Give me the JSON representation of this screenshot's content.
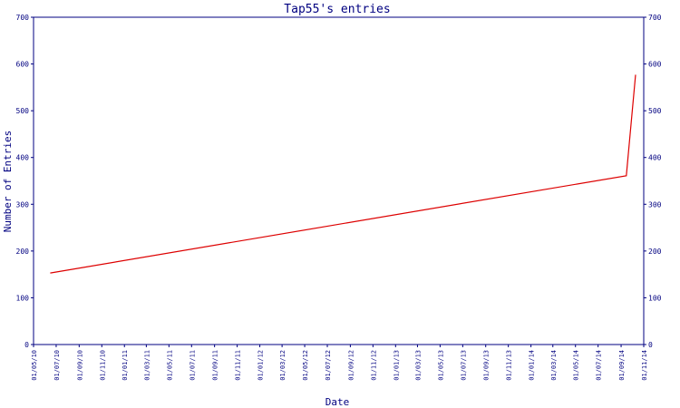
{
  "chart_data": {
    "type": "line",
    "title": "Tap55's entries",
    "xlabel": "Date",
    "ylabel": "Number of Entries",
    "ylim": [
      0,
      700
    ],
    "yticks": [
      0,
      100,
      200,
      300,
      400,
      500,
      600,
      700
    ],
    "xlim": [
      "2010-05-01",
      "2014-11-01"
    ],
    "xtick_labels": [
      "01/05/10",
      "01/07/10",
      "01/09/10",
      "01/11/10",
      "01/01/11",
      "01/03/11",
      "01/05/11",
      "01/07/11",
      "01/09/11",
      "01/11/11",
      "01/01/12",
      "01/03/12",
      "01/05/12",
      "01/07/12",
      "01/09/12",
      "01/11/12",
      "01/01/13",
      "01/03/13",
      "01/05/13",
      "01/07/13",
      "01/09/13",
      "01/11/13",
      "01/01/14",
      "01/03/14",
      "01/05/14",
      "01/07/14",
      "01/09/14",
      "01/11/14"
    ],
    "grid": false,
    "colors": {
      "line": "#dd0000",
      "axis": "#000080",
      "text": "#000080"
    },
    "series": [
      {
        "x": [
          "2010-06-15",
          "2014-09-15",
          "2014-10-10"
        ],
        "y": [
          153,
          361,
          577
        ]
      }
    ]
  }
}
